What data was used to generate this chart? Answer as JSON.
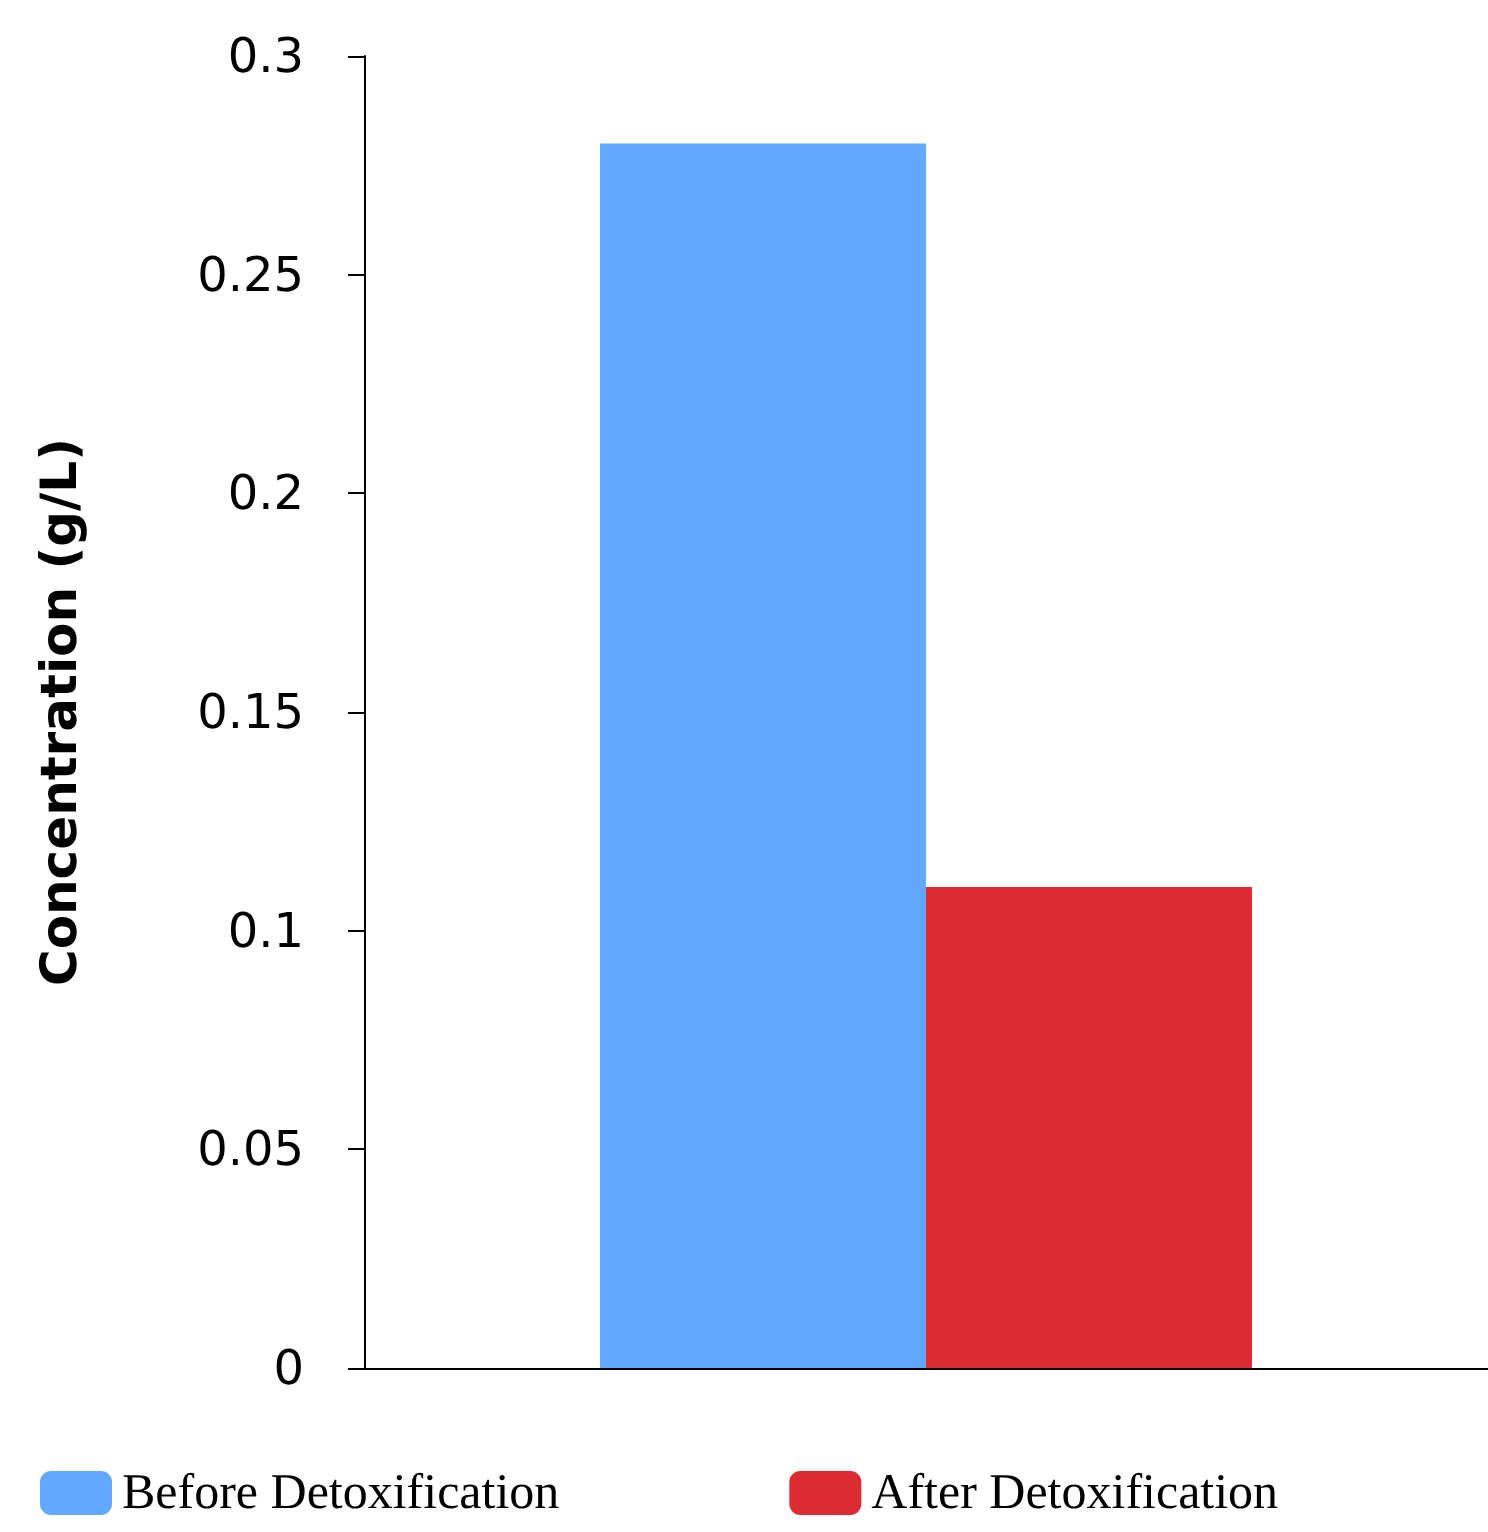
{
  "chart_data": {
    "type": "bar",
    "ylabel": "Concentration (g/L)",
    "categories": [
      null
    ],
    "series": [
      {
        "name": "Before Detoxification",
        "color": "#62a8fe",
        "values": [
          0.28
        ]
      },
      {
        "name": "After Detoxification",
        "color": "#dc2c33",
        "values": [
          0.11
        ]
      }
    ],
    "ylim": [
      0,
      0.3
    ],
    "yticks": [
      0,
      0.05,
      0.1,
      0.15,
      0.2,
      0.25,
      0.3
    ],
    "grid": false,
    "legend": "bottom"
  }
}
